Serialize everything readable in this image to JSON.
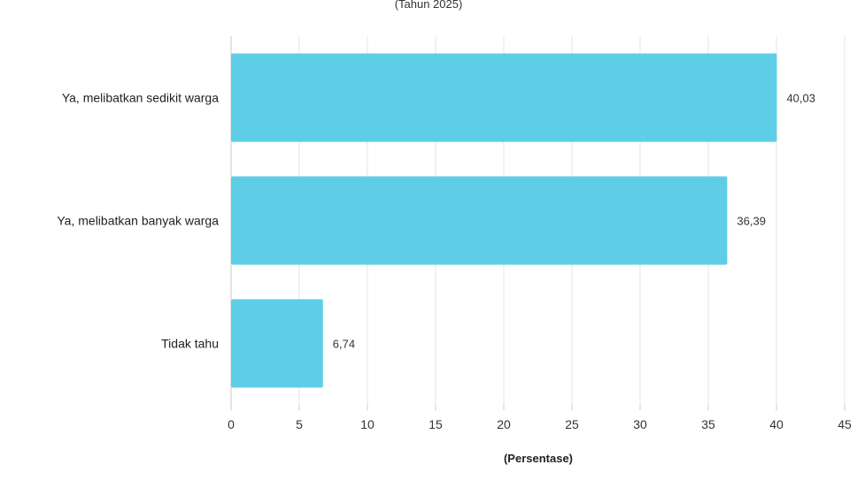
{
  "chart_data": {
    "type": "bar",
    "orientation": "horizontal",
    "subtitle": "(Tahun 2025)",
    "categories": [
      "Ya, melibatkan sedikit warga",
      "Ya, melibatkan banyak warga",
      "Tidak tahu"
    ],
    "values": [
      40.03,
      36.39,
      6.74
    ],
    "value_labels": [
      "40,03",
      "36,39",
      "6,74"
    ],
    "xlabel": "(Persentase)",
    "ylabel": "",
    "xlim": [
      0,
      45
    ],
    "x_ticks": [
      0,
      5,
      10,
      15,
      20,
      25,
      30,
      35,
      40,
      45
    ],
    "grid": true,
    "legend": "none",
    "colors": {
      "bar": "#5ecde6",
      "grid": "#e4e4e4",
      "axis": "#c8c8c8"
    }
  }
}
